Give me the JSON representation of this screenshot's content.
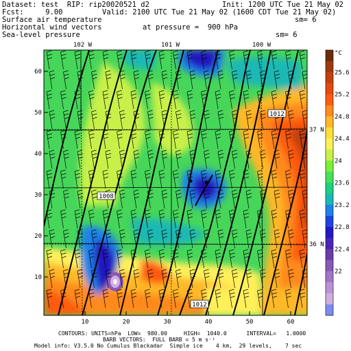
{
  "header": {
    "dataset": "Dataset: test  RIP: rip20020521 d2",
    "init": "Init: 1200 UTC Tue 21 May 02",
    "fcst": "Fcst:     9.00",
    "valid": "Valid: 2100 UTC Tue 21 May 02 (1600 CDT Tue 21 May 02)",
    "field1": "Surface air temperature",
    "field1_sm": "sm= 6",
    "field2": "Horizontal wind vectors",
    "field2_pressure": "at pressure =  900 hPa",
    "field3": "Sea-level pressure",
    "field3_sm": "sm= 6"
  },
  "map": {
    "longitude_labels": [
      "102 W",
      "101 W",
      "100 W"
    ],
    "latitude_labels": [
      "37 N",
      "36 N"
    ],
    "x_ticks": [
      "10",
      "20",
      "30",
      "40",
      "50",
      "60"
    ],
    "y_ticks": [
      "10",
      "20",
      "30",
      "40",
      "50",
      "60"
    ],
    "pressure_labels": [
      "1008",
      "1012",
      "1012"
    ]
  },
  "colorbar": {
    "unit": "°C",
    "labels": [
      "25.6",
      "25.2",
      "24.8",
      "24.4",
      "24",
      "23.6",
      "23.2",
      "22.8",
      "22.4",
      "22"
    ],
    "colors": [
      "#6b2a0a",
      "#9c3a10",
      "#c2410e",
      "#e24a0f",
      "#ff5a10",
      "#ff8a1e",
      "#ffb828",
      "#ffe03a",
      "#fff05a",
      "#c8f04a",
      "#7ef038",
      "#46e05a",
      "#1ed080",
      "#1ab8b4",
      "#1e82e8",
      "#1e44e0",
      "#2418c0",
      "#4a24b4",
      "#6a3ca8",
      "#8a58b8",
      "#a474c8",
      "#bc92d6",
      "#d0aee2",
      "#7e8cf0"
    ]
  },
  "footer": {
    "line1": "CONTOURS: UNITS=hPa  LOW=  980.00     HIGH=  1040.0      INTERVAL=   1.0000",
    "line2": "BARB VECTORS:  FULL BARB = 5 m s⁻¹",
    "line3": "Model info: V3.5.0 No Cumulus Blackadar  Simple ice    4 km,  29 levels,    7 sec"
  }
}
